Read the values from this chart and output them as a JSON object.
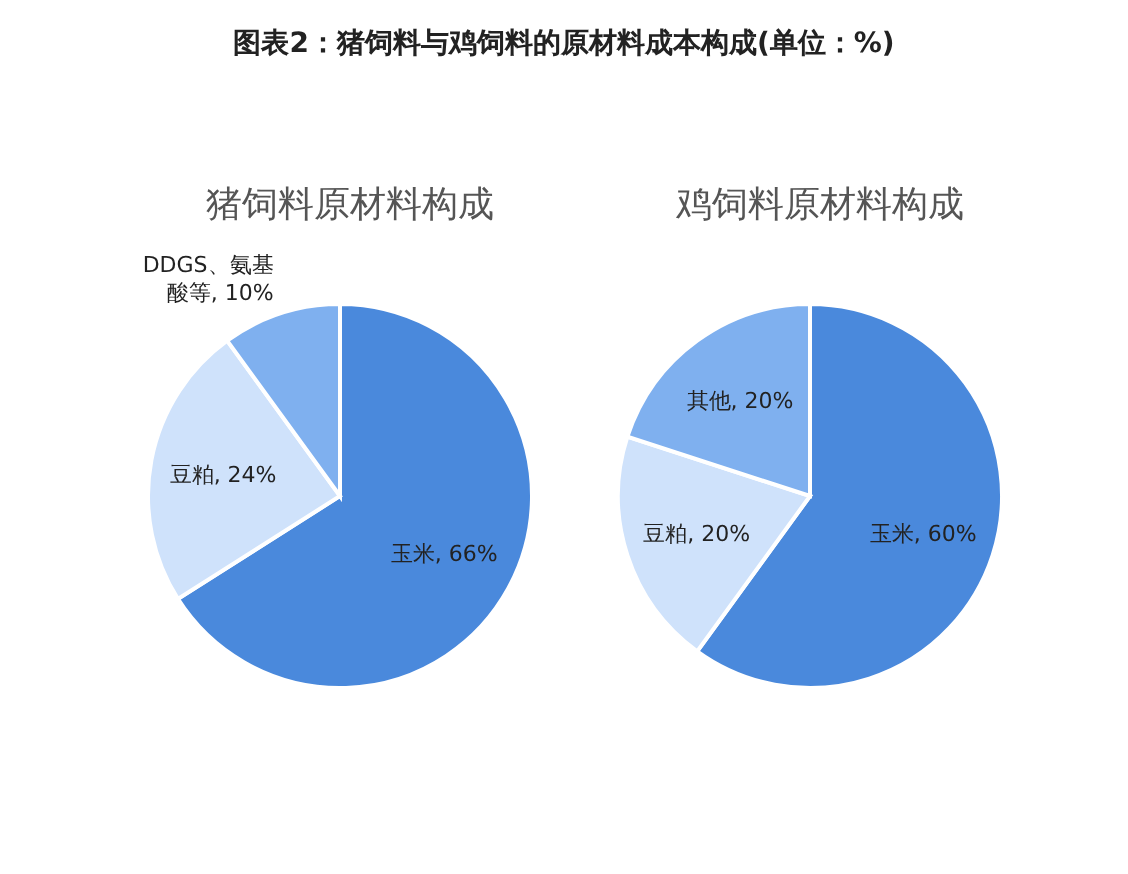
{
  "chart_data": [
    {
      "type": "pie",
      "title": "图表2：猪饲料与鸡饲料的原材料成本构成(单位：%)",
      "subtitle": "猪饲料原材料构成",
      "categories": [
        "玉米",
        "豆粕",
        "DDGS、氨基酸等"
      ],
      "values": [
        66,
        24,
        10
      ],
      "value_labels": [
        "66%",
        "24%",
        "10%"
      ],
      "colors": [
        "#4a89dc",
        "#cfe2fb",
        "#7fb0ef"
      ]
    },
    {
      "type": "pie",
      "title": "鸡饲料原材料构成",
      "categories": [
        "玉米",
        "豆粕",
        "其他"
      ],
      "values": [
        60,
        20,
        20
      ],
      "value_labels": [
        "60%",
        "20%",
        "20%"
      ],
      "colors": [
        "#4a89dc",
        "#cfe2fb",
        "#7fb0ef"
      ]
    }
  ]
}
